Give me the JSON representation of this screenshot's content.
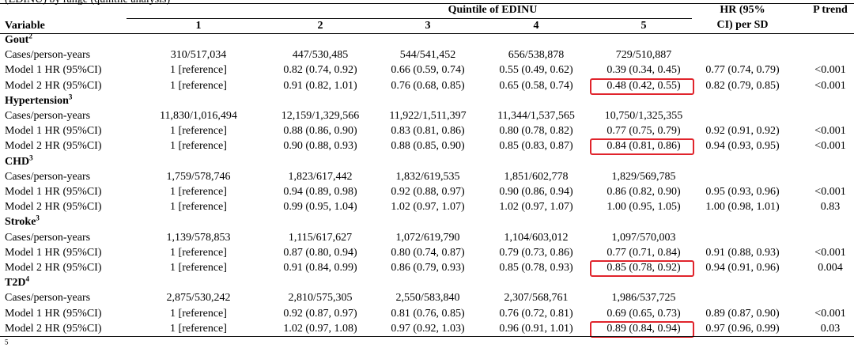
{
  "caption_fragment": "(EDINU) by range (quintile analysis)",
  "header": {
    "variable": "Variable",
    "quintile_title": "Quintile of EDINU",
    "quintiles": [
      "1",
      "2",
      "3",
      "4",
      "5"
    ],
    "hr_line1": "HR (95%",
    "hr_line2": "CI) per SD",
    "ptrend": "P trend"
  },
  "sections": [
    {
      "name": "Gout",
      "sup": "2",
      "rows": [
        {
          "label": "Cases/person-years",
          "q": [
            "310/517,034",
            "447/530,485",
            "544/541,452",
            "656/538,878",
            "729/510,887"
          ],
          "hr": "",
          "p": ""
        },
        {
          "label": "Model 1 HR (95%CI)",
          "q": [
            "1 [reference]",
            "0.82 (0.74, 0.92)",
            "0.66 (0.59, 0.74)",
            "0.55 (0.49, 0.62)",
            "0.39 (0.34, 0.45)"
          ],
          "hr": "0.77 (0.74, 0.79)",
          "p": "<0.001"
        },
        {
          "label": "Model 2 HR (95%CI)",
          "q": [
            "1 [reference]",
            "0.91 (0.82, 1.01)",
            "0.76 (0.68, 0.85)",
            "0.65 (0.58, 0.74)",
            "0.48 (0.42, 0.55)"
          ],
          "hr": "0.82 (0.79, 0.85)",
          "p": "<0.001",
          "highlight": true
        }
      ]
    },
    {
      "name": "Hypertension",
      "sup": "3",
      "rows": [
        {
          "label": "Cases/person-years",
          "q": [
            "11,830/1,016,494",
            "12,159/1,329,566",
            "11,922/1,511,397",
            "11,344/1,537,565",
            "10,750/1,325,355"
          ],
          "hr": "",
          "p": ""
        },
        {
          "label": "Model 1 HR (95%CI)",
          "q": [
            "1 [reference]",
            "0.88 (0.86, 0.90)",
            "0.83 (0.81, 0.86)",
            "0.80 (0.78, 0.82)",
            "0.77 (0.75, 0.79)"
          ],
          "hr": "0.92 (0.91, 0.92)",
          "p": "<0.001"
        },
        {
          "label": "Model 2 HR (95%CI)",
          "q": [
            "1 [reference]",
            "0.90 (0.88, 0.93)",
            "0.88 (0.85, 0.90)",
            "0.85 (0.83, 0.87)",
            "0.84 (0.81, 0.86)"
          ],
          "hr": "0.94 (0.93, 0.95)",
          "p": "<0.001",
          "highlight": true
        }
      ]
    },
    {
      "name": "CHD",
      "sup": "3",
      "rows": [
        {
          "label": "Cases/person-years",
          "q": [
            "1,759/578,746",
            "1,823/617,442",
            "1,832/619,535",
            "1,851/602,778",
            "1,829/569,785"
          ],
          "hr": "",
          "p": ""
        },
        {
          "label": "Model 1 HR (95%CI)",
          "q": [
            "1 [reference]",
            "0.94 (0.89, 0.98)",
            "0.92 (0.88, 0.97)",
            "0.90 (0.86, 0.94)",
            "0.86 (0.82, 0.90)"
          ],
          "hr": "0.95 (0.93, 0.96)",
          "p": "<0.001"
        },
        {
          "label": "Model 2 HR (95%CI)",
          "q": [
            "1 [reference]",
            "0.99 (0.95, 1.04)",
            "1.02 (0.97, 1.07)",
            "1.02 (0.97, 1.07)",
            "1.00 (0.95, 1.05)"
          ],
          "hr": "1.00 (0.98, 1.01)",
          "p": "0.83"
        }
      ]
    },
    {
      "name": "Stroke",
      "sup": "3",
      "rows": [
        {
          "label": "Cases/person-years",
          "q": [
            "1,139/578,853",
            "1,115/617,627",
            "1,072/619,790",
            "1,104/603,012",
            "1,097/570,003"
          ],
          "hr": "",
          "p": ""
        },
        {
          "label": "Model 1 HR (95%CI)",
          "q": [
            "1 [reference]",
            "0.87 (0.80, 0.94)",
            "0.80 (0.74, 0.87)",
            "0.79 (0.73, 0.86)",
            "0.77 (0.71, 0.84)"
          ],
          "hr": "0.91 (0.88, 0.93)",
          "p": "<0.001"
        },
        {
          "label": "Model 2 HR (95%CI)",
          "q": [
            "1 [reference]",
            "0.91 (0.84, 0.99)",
            "0.86 (0.79, 0.93)",
            "0.85 (0.78, 0.93)",
            "0.85 (0.78, 0.92)"
          ],
          "hr": "0.94 (0.91, 0.96)",
          "p": "0.004",
          "highlight": true
        }
      ]
    },
    {
      "name": "T2D",
      "sup": "4",
      "rows": [
        {
          "label": "Cases/person-years",
          "q": [
            "2,875/530,242",
            "2,810/575,305",
            "2,550/583,840",
            "2,307/568,761",
            "1,986/537,725"
          ],
          "hr": "",
          "p": ""
        },
        {
          "label": "Model 1 HR (95%CI)",
          "q": [
            "1 [reference]",
            "0.92 (0.87, 0.97)",
            "0.81 (0.76, 0.85)",
            "0.76 (0.72, 0.81)",
            "0.69 (0.65, 0.73)"
          ],
          "hr": "0.89 (0.87, 0.90)",
          "p": "<0.001"
        },
        {
          "label": "Model 2 HR (95%CI)",
          "q": [
            "1 [reference]",
            "1.02 (0.97, 1.08)",
            "0.97 (0.92, 1.03)",
            "0.96 (0.91, 1.01)",
            "0.89 (0.84, 0.94)"
          ],
          "hr": "0.97 (0.96, 0.99)",
          "p": "0.03",
          "highlight": true
        }
      ]
    }
  ],
  "footnote_sup": "5"
}
